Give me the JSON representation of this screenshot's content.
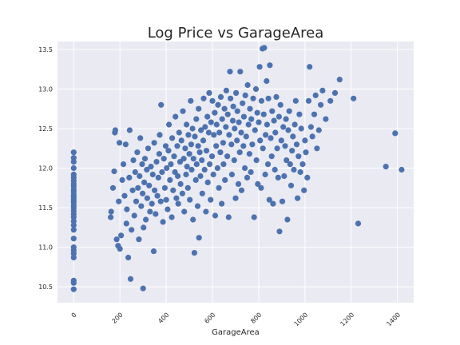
{
  "chart_data": {
    "type": "scatter",
    "title": "Log Price vs GarageArea",
    "xlabel": "GarageArea",
    "ylabel": "",
    "xlim": [
      -70,
      1470
    ],
    "ylim": [
      10.3,
      13.6
    ],
    "xticks": [
      0,
      200,
      400,
      600,
      800,
      1000,
      1200,
      1400
    ],
    "xtick_labels": [
      "0",
      "200",
      "400",
      "600",
      "800",
      "1000",
      "1200",
      "1400"
    ],
    "yticks": [
      10.5,
      11.0,
      11.5,
      12.0,
      12.5,
      13.0,
      13.5
    ],
    "ytick_labels": [
      "10.5",
      "11.0",
      "11.5",
      "12.0",
      "12.5",
      "13.0",
      "13.5"
    ],
    "grid": true,
    "point_color": "#4c72b0",
    "plot_bg": "#eaeaf2",
    "grid_color": "#ffffff",
    "points": [
      [
        0,
        10.47
      ],
      [
        0,
        10.55
      ],
      [
        0,
        10.58
      ],
      [
        0,
        10.87
      ],
      [
        0,
        10.92
      ],
      [
        0,
        10.96
      ],
      [
        0,
        11.0
      ],
      [
        0,
        11.11
      ],
      [
        0,
        11.22
      ],
      [
        0,
        11.28
      ],
      [
        0,
        11.33
      ],
      [
        0,
        11.38
      ],
      [
        0,
        11.42
      ],
      [
        0,
        11.46
      ],
      [
        0,
        11.5
      ],
      [
        0,
        11.53
      ],
      [
        0,
        11.57
      ],
      [
        0,
        11.6
      ],
      [
        0,
        11.63
      ],
      [
        0,
        11.66
      ],
      [
        0,
        11.7
      ],
      [
        0,
        11.73
      ],
      [
        0,
        11.77
      ],
      [
        0,
        11.8
      ],
      [
        0,
        11.84
      ],
      [
        0,
        11.88
      ],
      [
        0,
        11.92
      ],
      [
        0,
        12.0
      ],
      [
        0,
        12.08
      ],
      [
        0,
        12.13
      ],
      [
        0,
        12.2
      ],
      [
        160,
        11.38
      ],
      [
        162,
        11.45
      ],
      [
        170,
        11.75
      ],
      [
        175,
        11.96
      ],
      [
        178,
        12.45
      ],
      [
        180,
        12.48
      ],
      [
        186,
        11.1
      ],
      [
        192,
        11.02
      ],
      [
        195,
        11.58
      ],
      [
        198,
        12.32
      ],
      [
        200,
        10.98
      ],
      [
        205,
        11.15
      ],
      [
        210,
        11.85
      ],
      [
        215,
        12.05
      ],
      [
        220,
        11.65
      ],
      [
        225,
        12.3
      ],
      [
        228,
        11.3
      ],
      [
        230,
        11.48
      ],
      [
        236,
        10.87
      ],
      [
        240,
        11.88
      ],
      [
        242,
        12.48
      ],
      [
        246,
        10.6
      ],
      [
        250,
        11.22
      ],
      [
        255,
        11.72
      ],
      [
        258,
        12.1
      ],
      [
        262,
        11.4
      ],
      [
        266,
        11.95
      ],
      [
        270,
        11.58
      ],
      [
        275,
        12.2
      ],
      [
        278,
        11.75
      ],
      [
        282,
        11.1
      ],
      [
        285,
        11.9
      ],
      [
        288,
        12.38
      ],
      [
        292,
        11.52
      ],
      [
        296,
        12.05
      ],
      [
        298,
        11.68
      ],
      [
        300,
        10.48
      ],
      [
        302,
        11.25
      ],
      [
        305,
        11.82
      ],
      [
        308,
        12.12
      ],
      [
        312,
        11.35
      ],
      [
        316,
        11.98
      ],
      [
        318,
        11.62
      ],
      [
        322,
        12.25
      ],
      [
        326,
        11.78
      ],
      [
        330,
        11.45
      ],
      [
        334,
        12.02
      ],
      [
        338,
        11.55
      ],
      [
        342,
        11.92
      ],
      [
        346,
        10.95
      ],
      [
        348,
        12.32
      ],
      [
        350,
        11.72
      ],
      [
        354,
        11.42
      ],
      [
        358,
        12.08
      ],
      [
        362,
        11.65
      ],
      [
        366,
        11.88
      ],
      [
        370,
        12.18
      ],
      [
        372,
        12.42
      ],
      [
        376,
        11.58
      ],
      [
        378,
        12.8
      ],
      [
        382,
        11.95
      ],
      [
        386,
        11.32
      ],
      [
        390,
        12.12
      ],
      [
        394,
        11.75
      ],
      [
        398,
        12.28
      ],
      [
        400,
        11.6
      ],
      [
        402,
        12.0
      ],
      [
        406,
        11.48
      ],
      [
        410,
        12.22
      ],
      [
        412,
        12.55
      ],
      [
        416,
        11.85
      ],
      [
        420,
        12.05
      ],
      [
        424,
        11.38
      ],
      [
        426,
        12.38
      ],
      [
        430,
        11.72
      ],
      [
        434,
        12.15
      ],
      [
        438,
        11.95
      ],
      [
        440,
        12.65
      ],
      [
        444,
        11.62
      ],
      [
        448,
        12.28
      ],
      [
        450,
        11.9
      ],
      [
        452,
        11.55
      ],
      [
        456,
        12.45
      ],
      [
        460,
        12.08
      ],
      [
        462,
        11.8
      ],
      [
        466,
        12.35
      ],
      [
        470,
        11.68
      ],
      [
        472,
        12.72
      ],
      [
        476,
        12.12
      ],
      [
        478,
        11.45
      ],
      [
        482,
        12.25
      ],
      [
        486,
        11.92
      ],
      [
        488,
        12.55
      ],
      [
        490,
        12.02
      ],
      [
        494,
        11.75
      ],
      [
        496,
        12.42
      ],
      [
        500,
        12.18
      ],
      [
        502,
        11.6
      ],
      [
        506,
        12.85
      ],
      [
        508,
        12.3
      ],
      [
        510,
        11.98
      ],
      [
        514,
        12.5
      ],
      [
        516,
        11.35
      ],
      [
        518,
        12.12
      ],
      [
        522,
        10.93
      ],
      [
        524,
        12.4
      ],
      [
        528,
        11.85
      ],
      [
        530,
        12.62
      ],
      [
        532,
        12.05
      ],
      [
        536,
        11.52
      ],
      [
        538,
        12.28
      ],
      [
        540,
        12.75
      ],
      [
        542,
        11.12
      ],
      [
        545,
        12.2
      ],
      [
        548,
        11.9
      ],
      [
        550,
        12.48
      ],
      [
        554,
        12.1
      ],
      [
        556,
        11.68
      ],
      [
        560,
        12.35
      ],
      [
        562,
        12.88
      ],
      [
        566,
        11.98
      ],
      [
        568,
        12.52
      ],
      [
        572,
        11.45
      ],
      [
        574,
        12.22
      ],
      [
        578,
        12.65
      ],
      [
        580,
        11.82
      ],
      [
        584,
        12.45
      ],
      [
        586,
        12.95
      ],
      [
        588,
        12.05
      ],
      [
        592,
        11.6
      ],
      [
        594,
        12.58
      ],
      [
        598,
        12.15
      ],
      [
        600,
        12.85
      ],
      [
        604,
        11.92
      ],
      [
        606,
        12.42
      ],
      [
        610,
        12.7
      ],
      [
        612,
        11.4
      ],
      [
        616,
        12.28
      ],
      [
        618,
        12.55
      ],
      [
        622,
        12.0
      ],
      [
        624,
        12.8
      ],
      [
        628,
        11.75
      ],
      [
        630,
        12.45
      ],
      [
        634,
        12.2
      ],
      [
        636,
        12.9
      ],
      [
        640,
        11.55
      ],
      [
        642,
        12.62
      ],
      [
        646,
        12.32
      ],
      [
        648,
        12.05
      ],
      [
        652,
        12.75
      ],
      [
        654,
        11.85
      ],
      [
        658,
        12.52
      ],
      [
        660,
        12.98
      ],
      [
        664,
        12.15
      ],
      [
        666,
        12.68
      ],
      [
        670,
        11.38
      ],
      [
        672,
        12.42
      ],
      [
        676,
        13.22
      ],
      [
        678,
        12.88
      ],
      [
        682,
        12.3
      ],
      [
        684,
        11.92
      ],
      [
        688,
        12.6
      ],
      [
        690,
        12.78
      ],
      [
        694,
        12.1
      ],
      [
        696,
        12.5
      ],
      [
        700,
        11.62
      ],
      [
        702,
        12.95
      ],
      [
        706,
        12.35
      ],
      [
        708,
        12.72
      ],
      [
        712,
        11.8
      ],
      [
        714,
        12.58
      ],
      [
        718,
        12.2
      ],
      [
        720,
        13.22
      ],
      [
        724,
        12.45
      ],
      [
        726,
        11.72
      ],
      [
        730,
        12.82
      ],
      [
        734,
        12.28
      ],
      [
        736,
        12.65
      ],
      [
        740,
        12.0
      ],
      [
        742,
        12.92
      ],
      [
        746,
        12.4
      ],
      [
        750,
        11.88
      ],
      [
        752,
        13.05
      ],
      [
        756,
        12.55
      ],
      [
        760,
        12.18
      ],
      [
        762,
        12.75
      ],
      [
        766,
        11.95
      ],
      [
        768,
        12.62
      ],
      [
        772,
        12.3
      ],
      [
        776,
        12.88
      ],
      [
        780,
        11.38
      ],
      [
        784,
        12.48
      ],
      [
        788,
        13.0
      ],
      [
        790,
        12.1
      ],
      [
        794,
        12.7
      ],
      [
        796,
        11.8
      ],
      [
        800,
        12.58
      ],
      [
        804,
        13.28
      ],
      [
        806,
        12.35
      ],
      [
        810,
        11.75
      ],
      [
        812,
        12.85
      ],
      [
        816,
        13.51
      ],
      [
        818,
        12.25
      ],
      [
        822,
        12.68
      ],
      [
        824,
        13.52
      ],
      [
        828,
        11.92
      ],
      [
        830,
        12.42
      ],
      [
        834,
        13.1
      ],
      [
        836,
        12.55
      ],
      [
        840,
        12.05
      ],
      [
        842,
        12.88
      ],
      [
        846,
        11.6
      ],
      [
        848,
        13.3
      ],
      [
        852,
        12.38
      ],
      [
        856,
        12.15
      ],
      [
        858,
        12.72
      ],
      [
        862,
        11.55
      ],
      [
        866,
        12.6
      ],
      [
        870,
        11.98
      ],
      [
        872,
        12.45
      ],
      [
        876,
        12.9
      ],
      [
        880,
        12.25
      ],
      [
        884,
        11.88
      ],
      [
        888,
        12.65
      ],
      [
        890,
        11.2
      ],
      [
        894,
        12.8
      ],
      [
        898,
        12.35
      ],
      [
        902,
        11.58
      ],
      [
        906,
        12.52
      ],
      [
        910,
        11.9
      ],
      [
        914,
        12.28
      ],
      [
        918,
        12.62
      ],
      [
        920,
        12.1
      ],
      [
        924,
        11.35
      ],
      [
        928,
        12.48
      ],
      [
        932,
        12.72
      ],
      [
        936,
        12.05
      ],
      [
        940,
        11.78
      ],
      [
        944,
        12.22
      ],
      [
        948,
        12.4
      ],
      [
        952,
        11.98
      ],
      [
        956,
        12.55
      ],
      [
        960,
        12.85
      ],
      [
        964,
        12.3
      ],
      [
        968,
        11.62
      ],
      [
        972,
        12.15
      ],
      [
        976,
        12.68
      ],
      [
        980,
        11.95
      ],
      [
        984,
        12.5
      ],
      [
        990,
        12.05
      ],
      [
        996,
        11.72
      ],
      [
        1000,
        12.35
      ],
      [
        1004,
        12.2
      ],
      [
        1010,
        11.88
      ],
      [
        1016,
        12.85
      ],
      [
        1020,
        13.28
      ],
      [
        1026,
        12.52
      ],
      [
        1032,
        12.4
      ],
      [
        1040,
        12.68
      ],
      [
        1046,
        12.92
      ],
      [
        1052,
        12.25
      ],
      [
        1060,
        12.48
      ],
      [
        1068,
        12.8
      ],
      [
        1076,
        12.98
      ],
      [
        1090,
        12.62
      ],
      [
        1110,
        12.85
      ],
      [
        1130,
        12.95
      ],
      [
        1150,
        13.12
      ],
      [
        1210,
        12.88
      ],
      [
        1230,
        11.3
      ],
      [
        1350,
        12.02
      ],
      [
        1390,
        12.44
      ],
      [
        1418,
        11.98
      ]
    ]
  }
}
